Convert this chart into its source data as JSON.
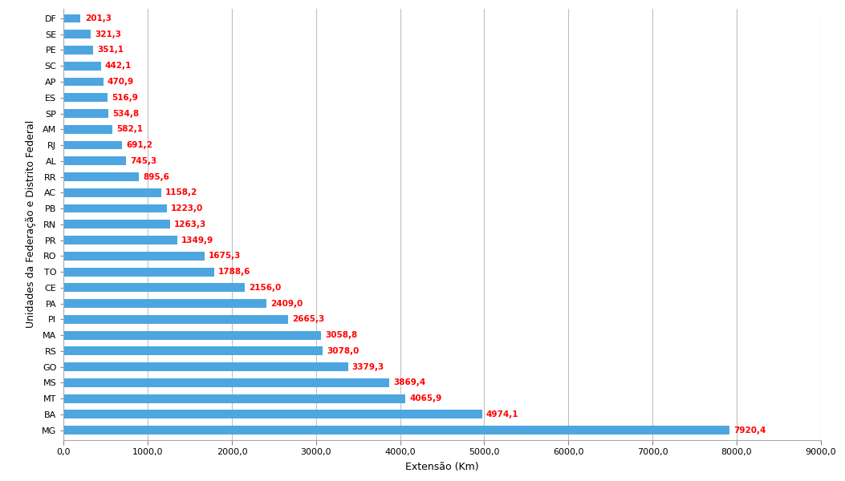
{
  "categories": [
    "MG",
    "BA",
    "MT",
    "MS",
    "GO",
    "RS",
    "MA",
    "PI",
    "PA",
    "CE",
    "TO",
    "RO",
    "PR",
    "RN",
    "PB",
    "AC",
    "RR",
    "AL",
    "RJ",
    "AM",
    "SP",
    "ES",
    "AP",
    "SC",
    "PE",
    "SE",
    "DF"
  ],
  "values": [
    7920.4,
    4974.1,
    4065.9,
    3869.4,
    3379.3,
    3078.0,
    3058.8,
    2665.3,
    2409.0,
    2156.0,
    1788.6,
    1675.3,
    1349.9,
    1263.3,
    1223.0,
    1158.2,
    895.6,
    745.3,
    691.2,
    582.1,
    534.8,
    516.9,
    470.9,
    442.1,
    351.1,
    321.3,
    201.3
  ],
  "bar_color": "#4da6e0",
  "label_color": "#ff0000",
  "ylabel": "Unidades da Federação e Distrito Federal",
  "xlabel": "Extensão (Km)",
  "xlim": [
    0,
    9000
  ],
  "xticks": [
    0,
    1000,
    2000,
    3000,
    4000,
    5000,
    6000,
    7000,
    8000,
    9000
  ],
  "xtick_labels": [
    "0,0",
    "1000,0",
    "2000,0",
    "3000,0",
    "4000,0",
    "5000,0",
    "6000,0",
    "7000,0",
    "8000,0",
    "9000,0"
  ],
  "background_color": "#ffffff",
  "grid_color": "#c0c0c0",
  "label_fontsize": 7.5,
  "axis_label_fontsize": 9,
  "tick_fontsize": 8,
  "bar_height": 0.55
}
